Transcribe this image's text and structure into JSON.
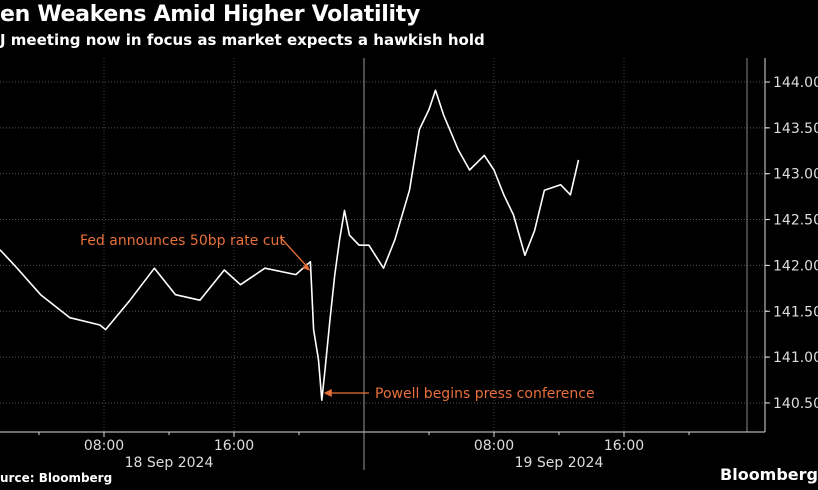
{
  "header": {
    "title": "en Weakens Amid Higher Volatility",
    "subtitle": "J meeting now in focus as market expects a hawkish hold"
  },
  "footer": {
    "source": "urce: Bloomberg",
    "brand": "Bloomberg"
  },
  "colors": {
    "background": "#000000",
    "line": "#ffffff",
    "annotation": "#e8703a",
    "grid": "#555555"
  },
  "chart_data": {
    "type": "line",
    "title": "en Weakens Amid Higher Volatility",
    "y_axis": {
      "position": "right",
      "ylim": [
        140.3,
        144.25
      ],
      "ticks": [
        "144.00",
        "143.50",
        "143.00",
        "142.50",
        "142.00",
        "141.50",
        "141.00",
        "140.50"
      ]
    },
    "x_axis": {
      "ticks": [
        {
          "time": "2024-09-18T08:00",
          "label": "08:00"
        },
        {
          "time": "2024-09-18T16:00",
          "label": "16:00"
        },
        {
          "time": "2024-09-19T08:00",
          "label": "08:00"
        },
        {
          "time": "2024-09-19T16:00",
          "label": "16:00"
        }
      ],
      "day_labels": [
        {
          "time": "2024-09-18T12:00",
          "label": "18 Sep 2024"
        },
        {
          "time": "2024-09-19T12:00",
          "label": "19 Sep 2024"
        }
      ],
      "day_divider": "2024-09-19T00:00"
    },
    "grid": true,
    "series": [
      {
        "x": [
          "2024-09-18T01:36",
          "2024-09-18T02:30",
          "2024-09-18T04:06",
          "2024-09-18T05:54",
          "2024-09-18T07:45",
          "2024-09-18T08:06",
          "2024-09-18T09:36",
          "2024-09-18T11:06",
          "2024-09-18T12:24",
          "2024-09-18T13:54",
          "2024-09-18T15:24",
          "2024-09-18T16:24",
          "2024-09-18T17:54",
          "2024-09-18T19:48",
          "2024-09-18T20:42",
          "2024-09-18T20:54",
          "2024-09-18T21:12",
          "2024-09-18T21:24",
          "2024-09-18T21:36",
          "2024-09-18T21:54",
          "2024-09-18T22:12",
          "2024-09-18T22:30",
          "2024-09-18T22:48",
          "2024-09-18T23:06",
          "2024-09-18T23:42",
          "2024-09-19T00:18",
          "2024-09-19T01:12",
          "2024-09-19T01:54",
          "2024-09-19T02:48",
          "2024-09-19T03:24",
          "2024-09-19T04:00",
          "2024-09-19T04:24",
          "2024-09-19T04:54",
          "2024-09-19T05:48",
          "2024-09-19T06:30",
          "2024-09-19T07:24",
          "2024-09-19T08:00",
          "2024-09-19T08:36",
          "2024-09-19T09:12",
          "2024-09-19T09:54",
          "2024-09-19T10:30",
          "2024-09-19T11:06",
          "2024-09-19T12:06",
          "2024-09-19T12:42",
          "2024-09-19T13:12"
        ],
        "values": [
          142.17,
          142.0,
          141.68,
          141.43,
          141.35,
          141.3,
          141.62,
          141.97,
          141.68,
          141.62,
          141.95,
          141.79,
          141.97,
          141.9,
          142.04,
          141.3,
          140.97,
          140.53,
          140.86,
          141.4,
          141.9,
          142.28,
          142.6,
          142.33,
          142.22,
          142.22,
          141.97,
          142.28,
          142.82,
          143.48,
          143.7,
          143.91,
          143.64,
          143.26,
          143.04,
          143.2,
          143.04,
          142.77,
          142.55,
          142.11,
          142.38,
          142.82,
          142.88,
          142.77,
          143.15
        ]
      }
    ],
    "annotations": [
      {
        "text": "Fed announces 50bp rate cut",
        "points_to": "2024-09-18T20:42"
      },
      {
        "text": "Powell begins press conference",
        "points_to": "2024-09-18T21:24"
      }
    ]
  }
}
